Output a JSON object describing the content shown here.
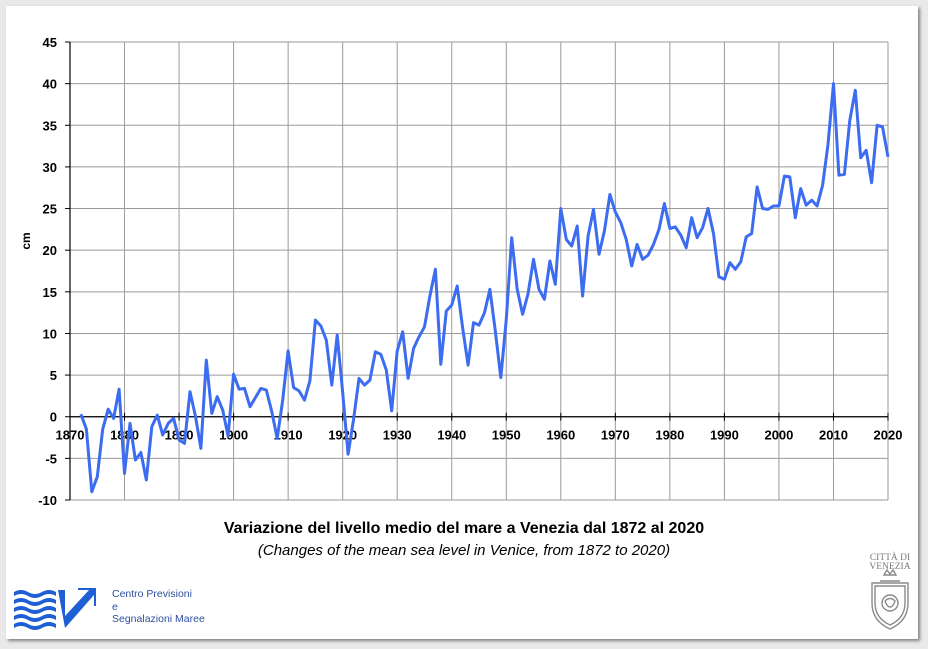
{
  "chart_data": {
    "type": "line",
    "title": "Variazione del livello medio del mare a Venezia dal 1872 al 2020",
    "subtitle": "(Changes of the mean sea level in Venice, from 1872 to 2020)",
    "xlabel": "",
    "ylabel": "cm",
    "xlim": [
      1870,
      2020
    ],
    "ylim": [
      -10,
      45
    ],
    "xticks": [
      "1870",
      "1880",
      "1890",
      "1900",
      "1910",
      "1920",
      "1930",
      "1940",
      "1950",
      "1960",
      "1970",
      "1980",
      "1990",
      "2000",
      "2010",
      "2020"
    ],
    "yticks": [
      "45",
      "40",
      "35",
      "30",
      "25",
      "20",
      "15",
      "10",
      "5",
      "0",
      "-5",
      "-10"
    ],
    "grid": true,
    "line_color": "#3c6cf0",
    "series": [
      {
        "x": [
          1872,
          1873,
          1874,
          1875,
          1876,
          1877,
          1878,
          1879,
          1880,
          1881,
          1882,
          1883,
          1884,
          1885,
          1886,
          1887,
          1888,
          1889,
          1890,
          1891,
          1892,
          1893,
          1894,
          1895,
          1896,
          1897,
          1898,
          1899,
          1900,
          1901,
          1902,
          1903,
          1904,
          1905,
          1906,
          1907,
          1908,
          1909,
          1910,
          1911,
          1912,
          1913,
          1914,
          1915,
          1916,
          1917,
          1918,
          1919,
          1920,
          1921,
          1922,
          1923,
          1924,
          1925,
          1926,
          1927,
          1928,
          1929,
          1930,
          1931,
          1932,
          1933,
          1934,
          1935,
          1936,
          1937,
          1938,
          1939,
          1940,
          1941,
          1942,
          1943,
          1944,
          1945,
          1946,
          1947,
          1948,
          1949,
          1950,
          1951,
          1952,
          1953,
          1954,
          1955,
          1956,
          1957,
          1958,
          1959,
          1960,
          1961,
          1962,
          1963,
          1964,
          1965,
          1966,
          1967,
          1968,
          1969,
          1970,
          1971,
          1972,
          1973,
          1974,
          1975,
          1976,
          1977,
          1978,
          1979,
          1980,
          1981,
          1982,
          1983,
          1984,
          1985,
          1986,
          1987,
          1988,
          1989,
          1990,
          1991,
          1992,
          1993,
          1994,
          1995,
          1996,
          1997,
          1998,
          1999,
          2000,
          2001,
          2002,
          2003,
          2004,
          2005,
          2006,
          2007,
          2008,
          2009,
          2010,
          2011,
          2012,
          2013,
          2014,
          2015,
          2016,
          2017,
          2018,
          2019,
          2020
        ],
        "y": [
          0.3,
          -1.5,
          -9.0,
          -7.2,
          -1.5,
          0.9,
          -0.2,
          3.3,
          -6.8,
          -0.8,
          -5.2,
          -4.3,
          -7.6,
          -1.2,
          0.2,
          -2.2,
          -0.8,
          -0.2,
          -2.8,
          -3.2,
          3.0,
          0.1,
          -3.8,
          6.8,
          0.4,
          2.4,
          0.8,
          -2.3,
          5.1,
          3.3,
          3.4,
          1.2,
          2.3,
          3.4,
          3.2,
          0.6,
          -2.6,
          2.0,
          7.9,
          3.5,
          3.1,
          2.0,
          4.3,
          11.6,
          10.9,
          9.2,
          3.8,
          9.8,
          2.9,
          -4.5,
          -0.3,
          4.6,
          3.8,
          4.4,
          7.8,
          7.5,
          5.6,
          0.7,
          7.9,
          10.2,
          4.6,
          8.2,
          9.6,
          10.8,
          14.5,
          17.7,
          6.3,
          12.7,
          13.4,
          15.7,
          10.7,
          6.2,
          11.3,
          11.0,
          12.5,
          15.3,
          10.2,
          4.7,
          11.7,
          21.5,
          15.3,
          12.3,
          14.8,
          18.9,
          15.3,
          14.1,
          18.7,
          15.9,
          25.0,
          21.3,
          20.5,
          22.9,
          14.5,
          21.7,
          24.9,
          19.5,
          22.3,
          26.7,
          24.6,
          23.3,
          21.3,
          18.1,
          20.7,
          18.9,
          19.4,
          20.7,
          22.5,
          25.6,
          22.6,
          22.8,
          21.8,
          20.3,
          23.9,
          21.5,
          22.7,
          25.0,
          22.0,
          16.8,
          16.5,
          18.5,
          17.7,
          18.6,
          21.6,
          22.0,
          27.6,
          25.0,
          24.9,
          25.3,
          25.3,
          28.9,
          28.8,
          23.9,
          27.4,
          25.4,
          26.0,
          25.3,
          27.8,
          32.7,
          40.0,
          29.0,
          29.1,
          35.6,
          39.2,
          31.1,
          32.0,
          28.1,
          35.0,
          34.8,
          31.2
        ]
      }
    ]
  },
  "footer": {
    "org_line1": "Centro Previsioni",
    "org_line2": "e",
    "org_line3": "Segnalazioni Maree",
    "city_line1": "CITTÀ DI",
    "city_line2": "VENEZIA"
  },
  "colors": {
    "line": "#3c6cf0",
    "grid": "#9a9a9a",
    "logo_blue": "#1f5fd6"
  }
}
